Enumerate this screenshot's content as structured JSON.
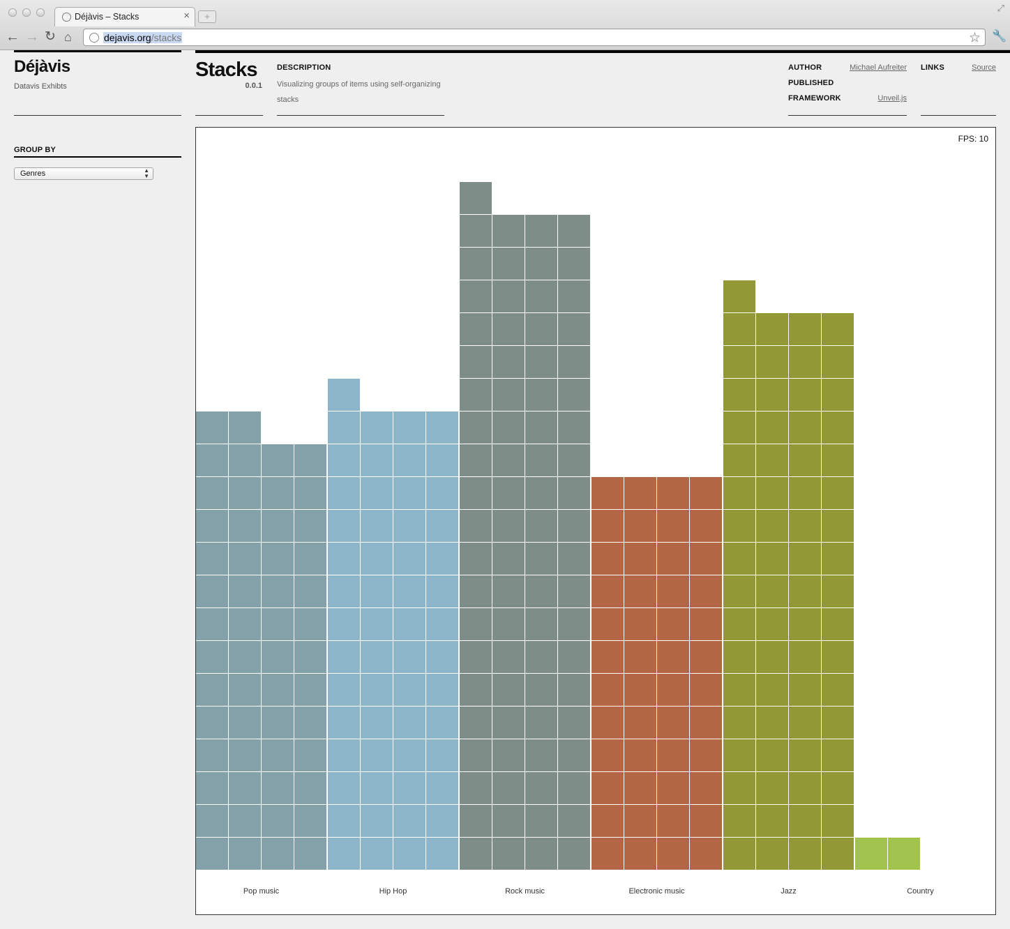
{
  "browser": {
    "tab_title": "Déjàvis – Stacks",
    "tab_close": "×",
    "new_tab": "+",
    "url_domain": "dejavis.org",
    "url_path": "/stacks"
  },
  "site": {
    "title": "Déjàvis",
    "subtitle": "Datavis Exhibts"
  },
  "app": {
    "title": "Stacks",
    "version": "0.0.1",
    "description_label": "DESCRIPTION",
    "description": "Visualizing groups of items using self-organizing stacks",
    "author_label": "AUTHOR",
    "author": "Michael Aufreiter",
    "published_label": "PUBLISHED",
    "framework_label": "FRAMEWORK",
    "framework": "Unveil.js",
    "links_label": "LINKS",
    "source_link": "Source"
  },
  "sidebar": {
    "group_by_label": "GROUP BY",
    "group_by_value": "Genres"
  },
  "fps_text": "FPS: 10",
  "chart_data": {
    "type": "bar",
    "columns_per_group": 4,
    "categories": [
      "Pop music",
      "Hip Hop",
      "Rock music",
      "Electronic music",
      "Jazz",
      "Country"
    ],
    "values": [
      54,
      57,
      81,
      48,
      69,
      2
    ],
    "colors": [
      "#84a1aa",
      "#8db5c9",
      "#7f8d88",
      "#b26644",
      "#939837",
      "#a2c44e"
    ],
    "grid": true
  }
}
